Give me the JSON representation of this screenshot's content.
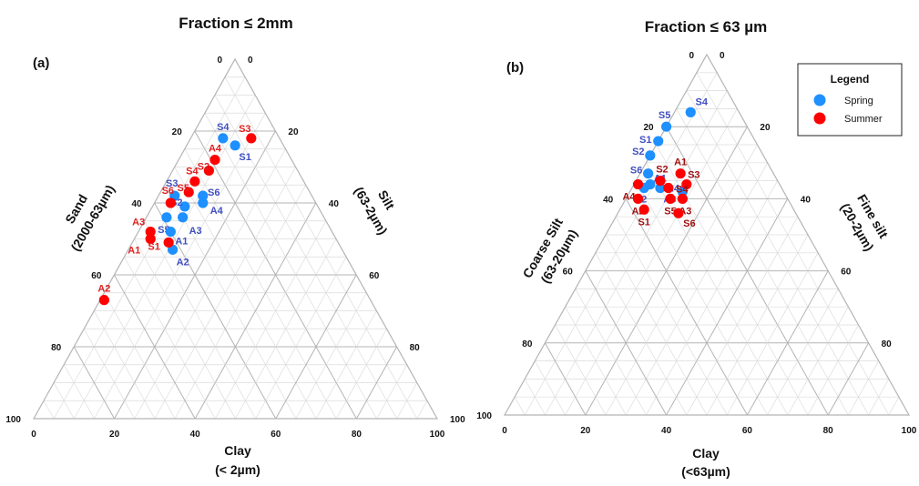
{
  "colors": {
    "spring": "#1e90ff",
    "summer": "#ff0000",
    "spring_label": "#4050c0",
    "summer_label_a": "#e02020",
    "summer_label_b": "#a01010",
    "grid_fine": "#dcdcdc",
    "grid_major": "#b4b4b4"
  },
  "legend": {
    "title": "Legend",
    "items": [
      {
        "name": "Spring"
      },
      {
        "name": "Summer"
      }
    ]
  },
  "chart_data": [
    {
      "type": "scatter",
      "subtype": "ternary",
      "panel_label": "(a)",
      "title": "Fraction ≤ 2mm",
      "axes": {
        "bottom": {
          "label_line1": "Clay",
          "label_line2": "(< 2µm)",
          "ticks": [
            "0",
            "20",
            "40",
            "60",
            "80",
            "100"
          ]
        },
        "left": {
          "label_line1": "Sand",
          "label_line2": "(2000-63µm)",
          "ticks": [
            "0",
            "20",
            "40",
            "60",
            "80",
            "100"
          ]
        },
        "right": {
          "label_line1": "Silt",
          "label_line2": "(63-2µm)",
          "ticks": [
            "100",
            "80",
            "60",
            "40",
            "20",
            "0"
          ]
        }
      },
      "grid": true,
      "series": [
        {
          "name": "Spring",
          "points": [
            {
              "label": "S4",
              "clay": 8,
              "sand": 14,
              "silt": 78
            },
            {
              "label": "S1",
              "clay": 12,
              "sand": 12,
              "silt": 76
            },
            {
              "label": "S3",
              "clay": 4,
              "sand": 34,
              "silt": 62
            },
            {
              "label": "S6",
              "clay": 11,
              "sand": 27,
              "silt": 62
            },
            {
              "label": "A4",
              "clay": 12,
              "sand": 28,
              "silt": 60
            },
            {
              "label": "S2",
              "clay": 8,
              "sand": 33,
              "silt": 59
            },
            {
              "label": "S5",
              "clay": 5,
              "sand": 39,
              "silt": 56
            },
            {
              "label": "A3",
              "clay": 9,
              "sand": 35,
              "silt": 56
            },
            {
              "label": "A1",
              "clay": 8,
              "sand": 40,
              "silt": 52
            },
            {
              "label": "A2",
              "clay": 11,
              "sand": 42,
              "silt": 47
            }
          ]
        },
        {
          "name": "Summer",
          "points": [
            {
              "label": "S3",
              "clay": 15,
              "sand": 7,
              "silt": 78
            },
            {
              "label": "A4",
              "clay": 9,
              "sand": 19,
              "silt": 72
            },
            {
              "label": "S2",
              "clay": 9,
              "sand": 22,
              "silt": 69
            },
            {
              "label": "S4",
              "clay": 7,
              "sand": 27,
              "silt": 66
            },
            {
              "label": "S5",
              "clay": 7,
              "sand": 30,
              "silt": 63
            },
            {
              "label": "S6",
              "clay": 4,
              "sand": 36,
              "silt": 60
            },
            {
              "label": "A3",
              "clay": 3,
              "sand": 45,
              "silt": 52
            },
            {
              "label": "A1",
              "clay": 4,
              "sand": 46,
              "silt": 50
            },
            {
              "label": "S1",
              "clay": 9,
              "sand": 42,
              "silt": 49
            },
            {
              "label": "A2",
              "clay": 1,
              "sand": 66,
              "silt": 33
            }
          ]
        }
      ]
    },
    {
      "type": "scatter",
      "subtype": "ternary",
      "panel_label": "(b)",
      "title": "Fraction ≤ 63 µm",
      "axes": {
        "bottom": {
          "label_line1": "Clay",
          "label_line2": "(<63µm)",
          "ticks": [
            "0",
            "20",
            "40",
            "60",
            "80",
            "100"
          ]
        },
        "left": {
          "label_line1": "Coarse Silt",
          "label_line2": "(63-20µm)",
          "ticks": [
            "0",
            "20",
            "40",
            "60",
            "80",
            "100"
          ]
        },
        "right": {
          "label_line1": "Fine silt",
          "label_line2": "(20-2µm)",
          "ticks": [
            "100",
            "80",
            "60",
            "40",
            "20",
            "0"
          ]
        }
      },
      "grid": true,
      "series": [
        {
          "name": "Spring",
          "points": [
            {
              "label": "S4",
              "clay": 4,
              "coarse_silt": 12,
              "fine_silt": 84
            },
            {
              "label": "S5",
              "clay": 0,
              "coarse_silt": 20,
              "fine_silt": 80
            },
            {
              "label": "S1",
              "clay": 0,
              "coarse_silt": 24,
              "fine_silt": 76
            },
            {
              "label": "S2",
              "clay": 0,
              "coarse_silt": 28,
              "fine_silt": 72
            },
            {
              "label": "S6",
              "clay": 2,
              "coarse_silt": 31,
              "fine_silt": 67
            },
            {
              "label": "A1",
              "clay": 4,
              "coarse_silt": 32,
              "fine_silt": 64
            },
            {
              "label": "A2",
              "clay": 3,
              "coarse_silt": 34,
              "fine_silt": 63
            },
            {
              "label": "A4",
              "clay": 7,
              "coarse_silt": 30,
              "fine_silt": 63
            },
            {
              "label": "A3",
              "clay": 13,
              "coarse_silt": 25,
              "fine_silt": 62
            }
          ]
        },
        {
          "name": "Summer",
          "points": [
            {
              "label": "A1",
              "clay": 10,
              "coarse_silt": 23,
              "fine_silt": 67
            },
            {
              "label": "S2",
              "clay": 6,
              "coarse_silt": 29,
              "fine_silt": 65
            },
            {
              "label": "A4",
              "clay": 1,
              "coarse_silt": 35,
              "fine_silt": 64
            },
            {
              "label": "S3",
              "clay": 13,
              "coarse_silt": 23,
              "fine_silt": 64
            },
            {
              "label": "S4",
              "clay": 9,
              "coarse_silt": 28,
              "fine_silt": 63
            },
            {
              "label": "A2",
              "clay": 3,
              "coarse_silt": 37,
              "fine_silt": 60
            },
            {
              "label": "S5",
              "clay": 11,
              "coarse_silt": 29,
              "fine_silt": 60
            },
            {
              "label": "A3",
              "clay": 14,
              "coarse_silt": 26,
              "fine_silt": 60
            },
            {
              "label": "S1",
              "clay": 6,
              "coarse_silt": 37,
              "fine_silt": 57
            },
            {
              "label": "S6",
              "clay": 15,
              "coarse_silt": 29,
              "fine_silt": 56
            }
          ]
        }
      ]
    }
  ]
}
